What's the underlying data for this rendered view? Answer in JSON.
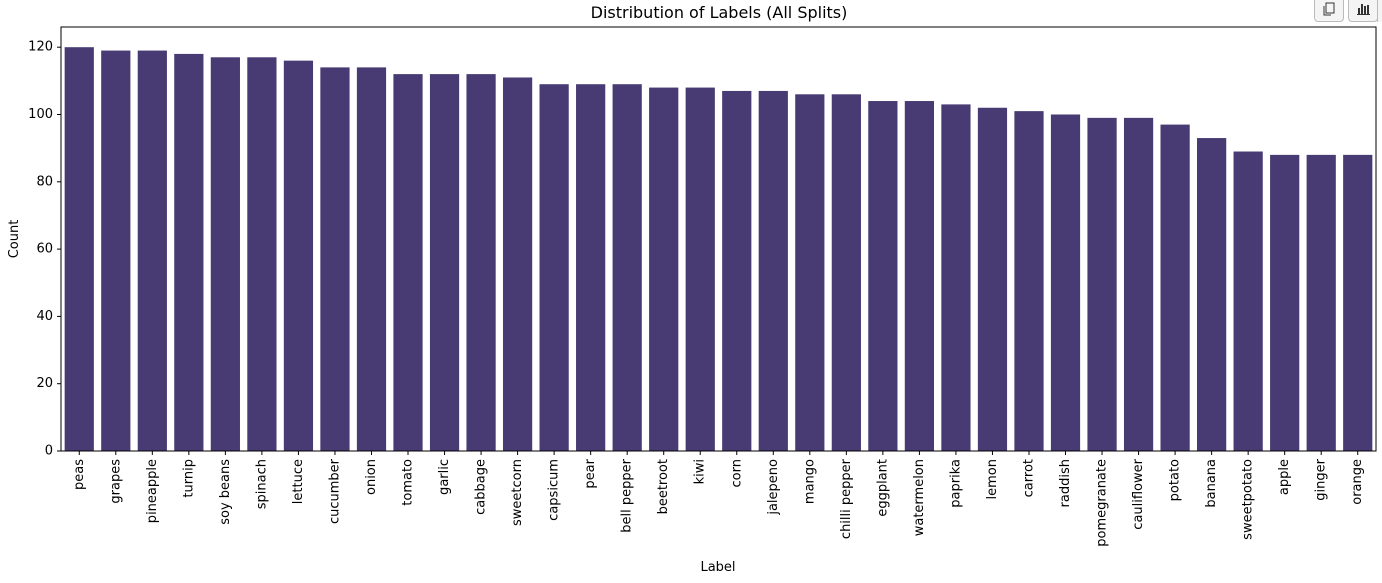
{
  "toolbar": {
    "copy_icon": "copy-icon",
    "chart_icon": "bar-chart-icon"
  },
  "chart_data": {
    "type": "bar",
    "title": "Distribution of Labels (All Splits)",
    "xlabel": "Label",
    "ylabel": "Count",
    "ylim": [
      0,
      126
    ],
    "yticks": [
      0,
      20,
      40,
      60,
      80,
      100,
      120
    ],
    "bar_color": "#483a73",
    "categories": [
      "peas",
      "grapes",
      "pineapple",
      "turnip",
      "soy beans",
      "spinach",
      "lettuce",
      "cucumber",
      "onion",
      "tomato",
      "garlic",
      "cabbage",
      "sweetcorn",
      "capsicum",
      "pear",
      "bell pepper",
      "beetroot",
      "kiwi",
      "corn",
      "jalepeno",
      "mango",
      "chilli pepper",
      "eggplant",
      "watermelon",
      "paprika",
      "lemon",
      "carrot",
      "raddish",
      "pomegranate",
      "cauliflower",
      "potato",
      "banana",
      "sweetpotato",
      "apple",
      "ginger",
      "orange"
    ],
    "values": [
      120,
      119,
      119,
      118,
      117,
      117,
      116,
      114,
      114,
      112,
      112,
      112,
      111,
      109,
      109,
      109,
      108,
      108,
      107,
      107,
      106,
      106,
      104,
      104,
      103,
      102,
      101,
      100,
      99,
      99,
      97,
      93,
      89,
      88,
      88,
      88
    ],
    "grid": false,
    "legend": "none"
  }
}
